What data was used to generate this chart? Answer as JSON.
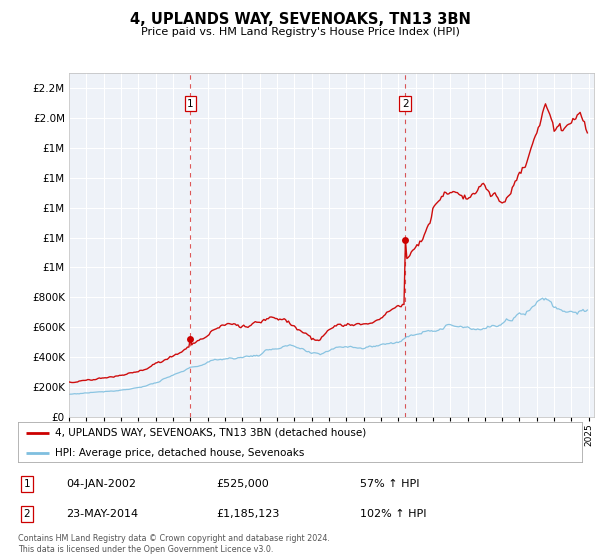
{
  "title": "4, UPLANDS WAY, SEVENOAKS, TN13 3BN",
  "subtitle": "Price paid vs. HM Land Registry's House Price Index (HPI)",
  "legend_line1": "4, UPLANDS WAY, SEVENOAKS, TN13 3BN (detached house)",
  "legend_line2": "HPI: Average price, detached house, Sevenoaks",
  "annotation1_label": "1",
  "annotation1_date": "04-JAN-2002",
  "annotation1_price": "£525,000",
  "annotation1_hpi": "57% ↑ HPI",
  "annotation2_label": "2",
  "annotation2_date": "23-MAY-2014",
  "annotation2_price": "£1,185,123",
  "annotation2_hpi": "102% ↑ HPI",
  "footnote1": "Contains HM Land Registry data © Crown copyright and database right 2024.",
  "footnote2": "This data is licensed under the Open Government Licence v3.0.",
  "sale1_date_num": 2002.01,
  "sale1_price": 525000,
  "sale2_date_num": 2014.4,
  "sale2_price": 1185123,
  "hpi_line_color": "#7fbfdf",
  "property_line_color": "#cc0000",
  "vline_color": "#cc0000",
  "plot_bg_color": "#eef2f8",
  "ylim_max": 2300000,
  "xlim_min": 1995.0,
  "xlim_max": 2025.3,
  "yticks": [
    0,
    200000,
    400000,
    600000,
    800000,
    1000000,
    1200000,
    1400000,
    1600000,
    1800000,
    2000000,
    2200000
  ]
}
